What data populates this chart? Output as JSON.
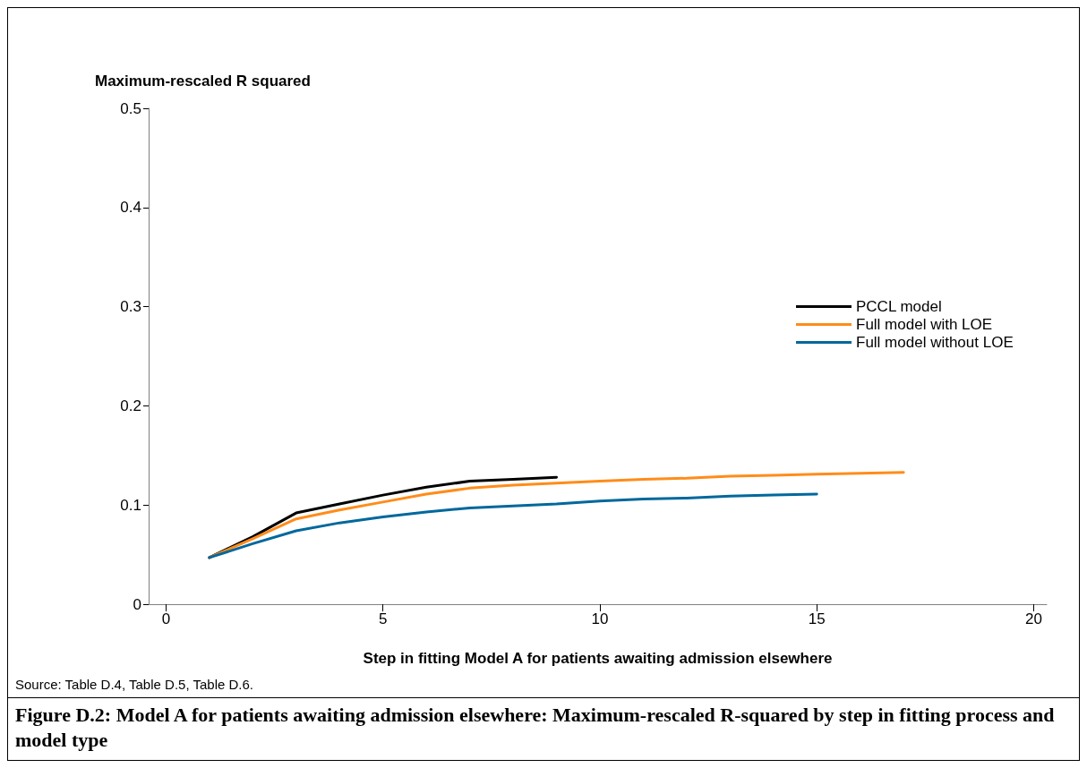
{
  "chart_data": {
    "type": "line",
    "title": "Figure D.2: Model A for patients awaiting admission elsewhere: Maximum-rescaled R-squared by step in fitting process and model type",
    "xlabel": "Step in fitting Model A for patients awaiting admission elsewhere",
    "ylabel": "Maximum-rescaled R squared",
    "annotations": [
      "Source: Table D.4, Table D.5, Table D.6."
    ],
    "xlim": [
      -0.4,
      20.3
    ],
    "xticks": [
      0,
      5,
      10,
      15,
      20
    ],
    "ylim": [
      0,
      0.5
    ],
    "yticks": [
      0,
      0.1,
      0.2,
      0.3,
      0.4,
      0.5
    ],
    "grid": false,
    "legend": "right",
    "marker": "none",
    "line_style": "solid",
    "series": [
      {
        "name": "PCCL model",
        "color": "#000000",
        "x": [
          1,
          2,
          3,
          4,
          5,
          6,
          7,
          8,
          9
        ],
        "values": [
          0.047,
          0.068,
          0.092,
          0.101,
          0.11,
          0.118,
          0.124,
          0.126,
          0.128
        ]
      },
      {
        "name": "Full model with LOE",
        "color": "#ff8c1a",
        "x": [
          1,
          2,
          3,
          4,
          5,
          6,
          7,
          8,
          9,
          10,
          11,
          12,
          13,
          14,
          15,
          16,
          17
        ],
        "values": [
          0.047,
          0.066,
          0.086,
          0.095,
          0.103,
          0.111,
          0.117,
          0.12,
          0.122,
          0.124,
          0.126,
          0.127,
          0.129,
          0.13,
          0.131,
          0.132,
          0.133
        ]
      },
      {
        "name": "Full model without LOE",
        "color": "#00689c",
        "x": [
          1,
          2,
          3,
          4,
          5,
          6,
          7,
          8,
          9,
          10,
          11,
          12,
          13,
          14,
          15
        ],
        "values": [
          0.047,
          0.061,
          0.074,
          0.082,
          0.088,
          0.093,
          0.097,
          0.099,
          0.101,
          0.104,
          0.106,
          0.107,
          0.109,
          0.11,
          0.111
        ]
      }
    ]
  }
}
